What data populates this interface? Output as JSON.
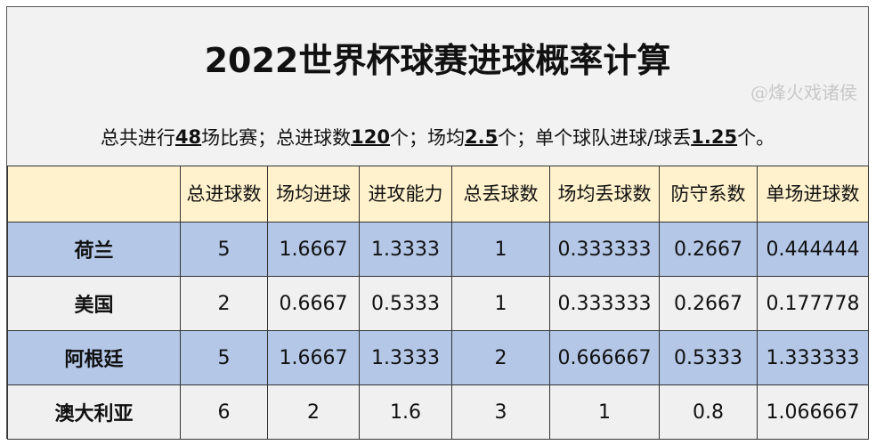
{
  "title": "2022世界杯球赛进球概率计算",
  "summary": {
    "p1": "总共进行",
    "v1": "48",
    "p2": "场比赛；总进球数",
    "v2": "120",
    "p3": "个；场均",
    "v3": "2.5",
    "p4": "个；单个球队进球/球丢",
    "v4": "1.25",
    "p5": "个。"
  },
  "table": {
    "headers": [
      "",
      "总进球数",
      "场均进球",
      "进攻能力",
      "总丢球数",
      "场均丢球数",
      "防守系数",
      "单场进球数"
    ],
    "rows": [
      [
        "荷兰",
        "5",
        "1.6667",
        "1.3333",
        "1",
        "0.333333",
        "0.2667",
        "0.444444"
      ],
      [
        "美国",
        "2",
        "0.6667",
        "0.5333",
        "1",
        "0.333333",
        "0.2667",
        "0.177778"
      ],
      [
        "阿根廷",
        "5",
        "1.6667",
        "1.3333",
        "2",
        "0.666667",
        "0.5333",
        "1.333333"
      ],
      [
        "澳大利亚",
        "6",
        "2",
        "1.6",
        "3",
        "1",
        "0.8",
        "1.066667"
      ]
    ]
  },
  "watermark": "@烽火戏诸侯",
  "colors": {
    "header": "#fff2cc",
    "blue_row": "#b4c7e7",
    "gray_row": "#f0f0f0"
  }
}
